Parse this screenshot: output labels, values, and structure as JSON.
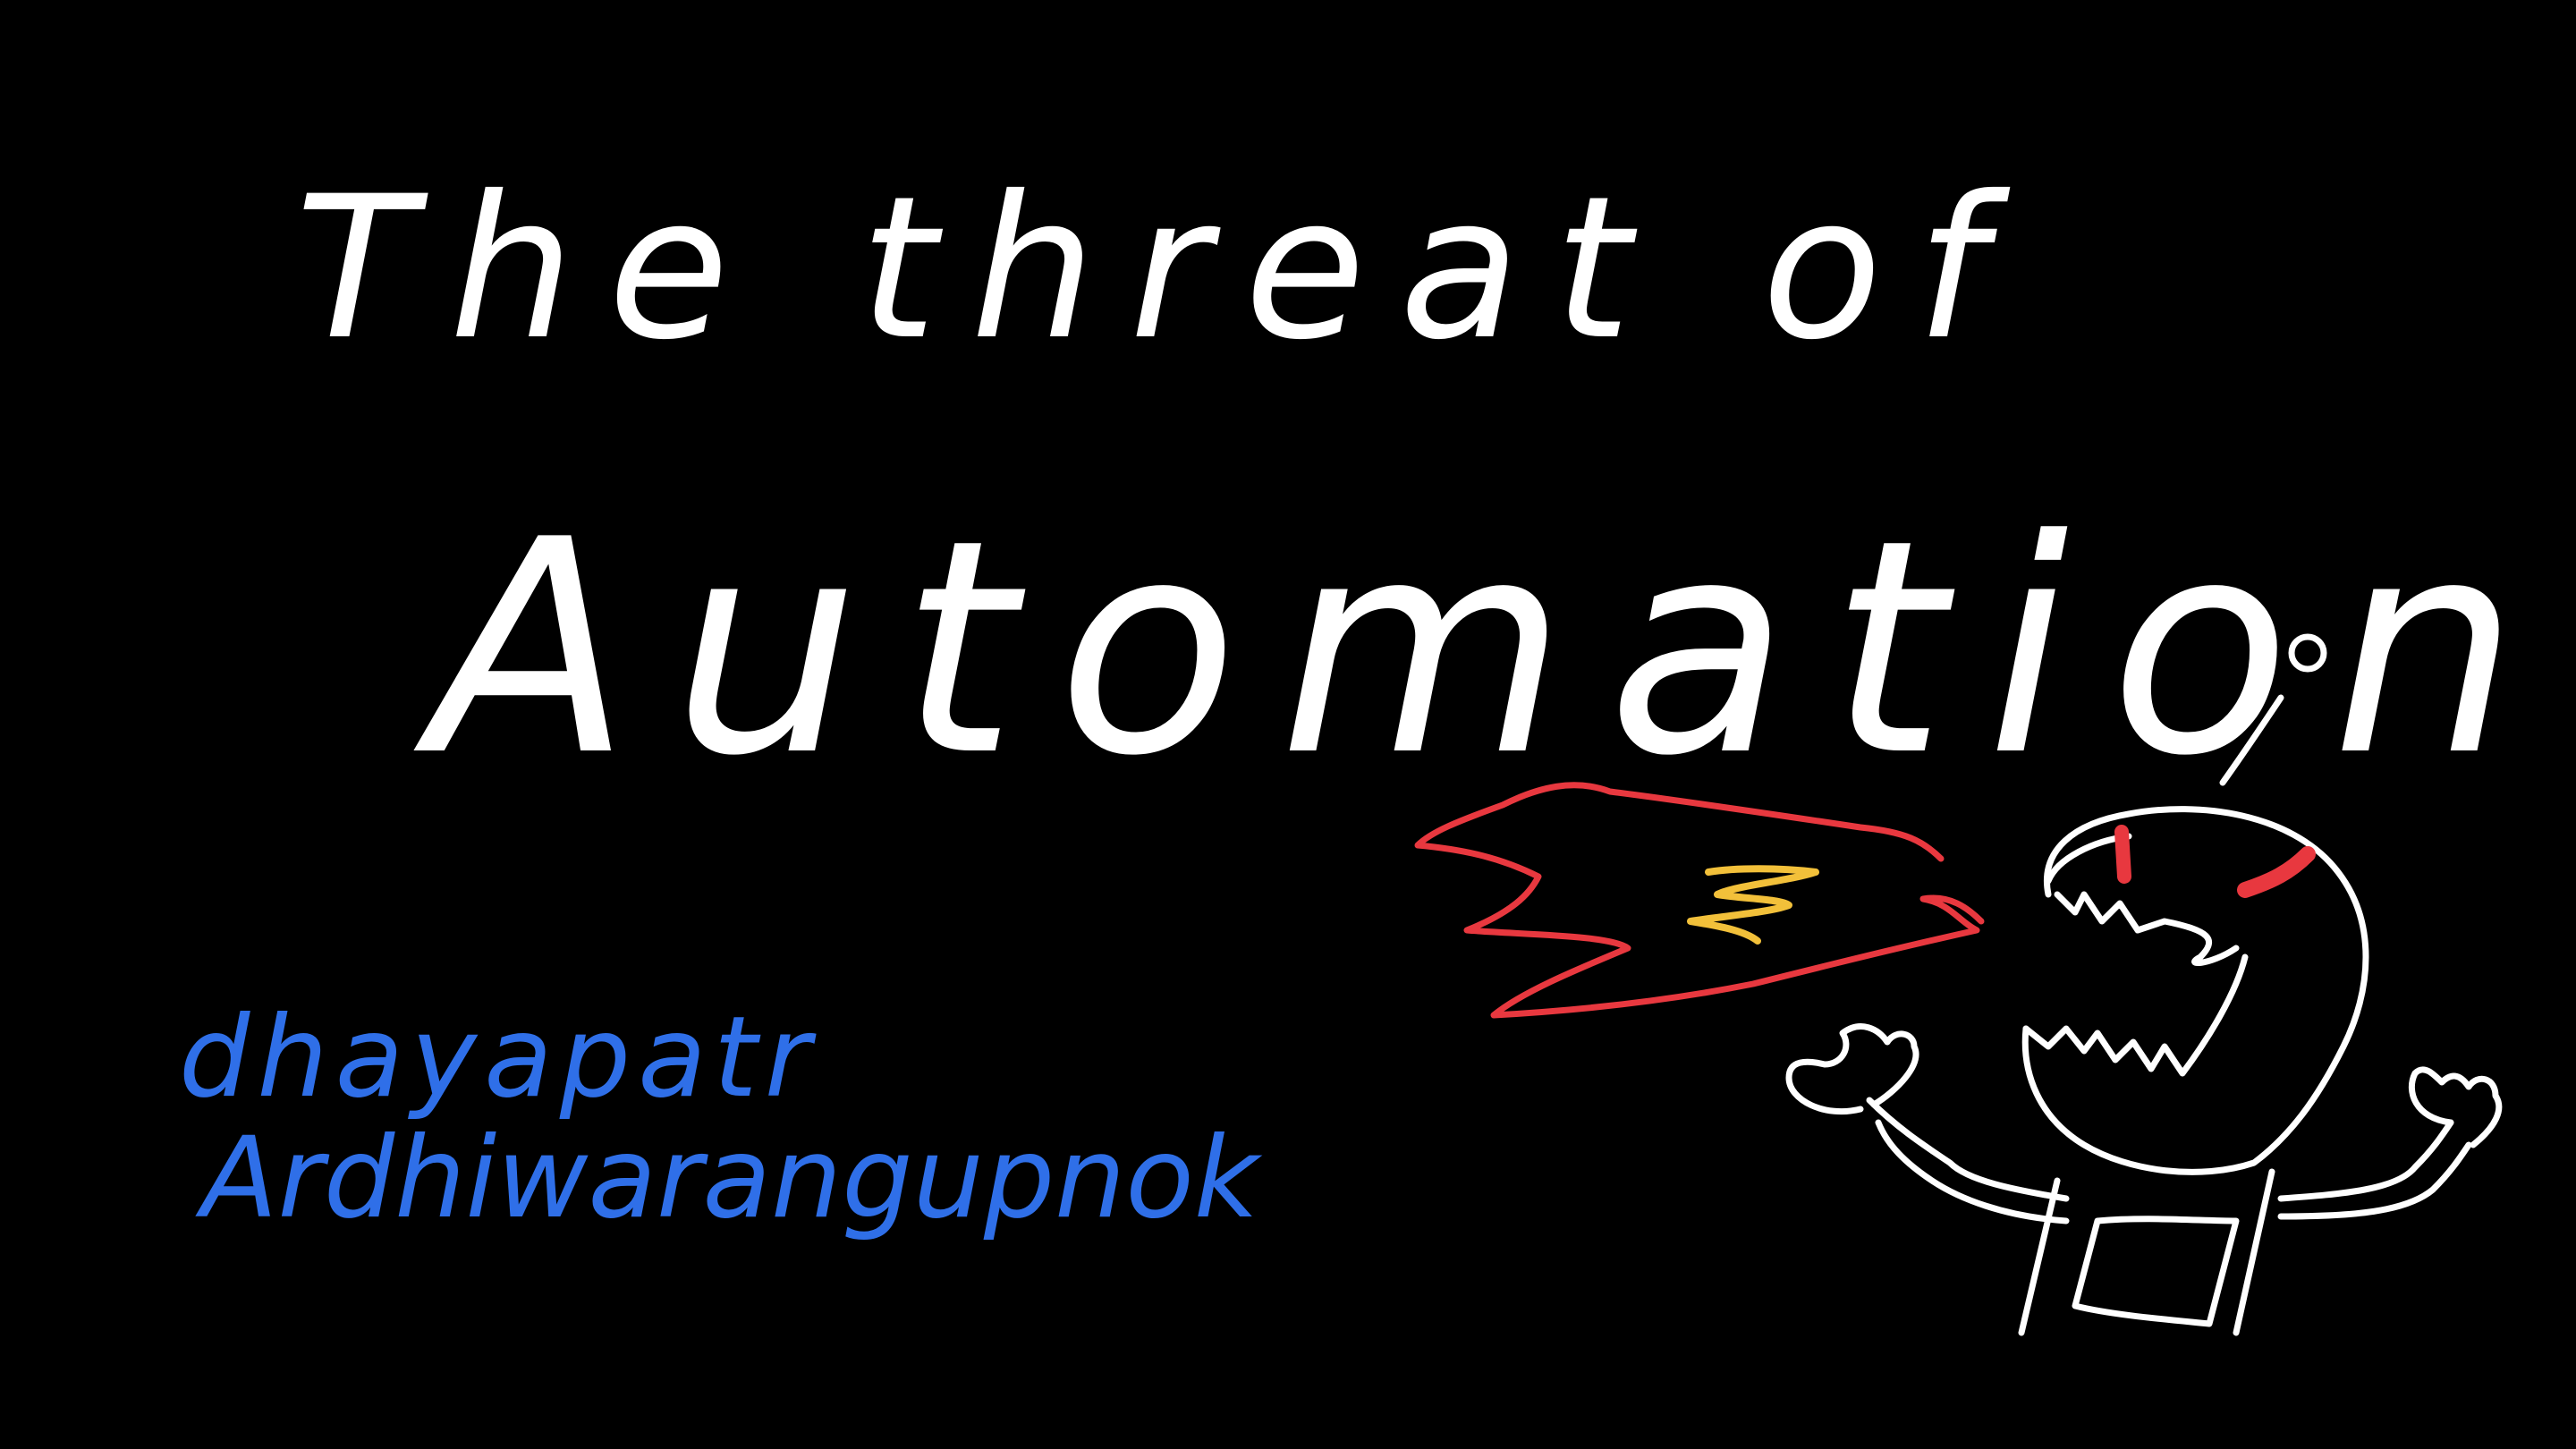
{
  "slide": {
    "title_line1": "The threat of",
    "title_line2": "Automation",
    "author_line1": "dhayapatr",
    "author_line2": "Ardhiwarangupnok"
  },
  "colors": {
    "background": "#000000",
    "title": "#ffffff",
    "author": "#2f6fe8",
    "flame_outer": "#e8383f",
    "flame_inner": "#f2c03a",
    "robot": "#ffffff",
    "robot_eyes": "#e8383f"
  },
  "icons": {
    "drawing": "angry-robot-breathing-fire-illustration"
  }
}
